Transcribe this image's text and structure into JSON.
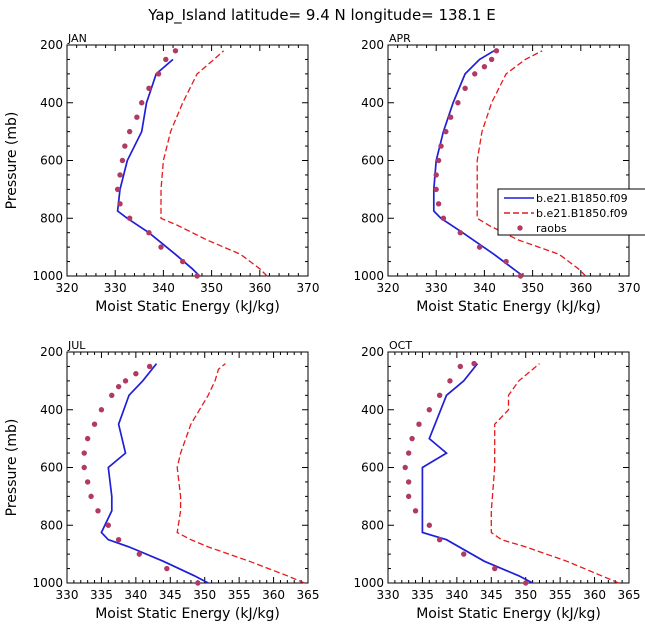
{
  "figure": {
    "title": "Yap_Island  latitude= 9.4 N longitude= 138.1 E",
    "colors": {
      "model_solid": "#1f1fd6",
      "model_dash": "#e41a1c",
      "raobs": "#b03a63",
      "axis": "#000000"
    }
  },
  "legend": {
    "entries": [
      {
        "label": "b.e21.B1850.f09",
        "style": "solid"
      },
      {
        "label": "b.e21.B1850.f09",
        "style": "dash"
      },
      {
        "label": "raobs",
        "style": "marker"
      }
    ]
  },
  "chart_data": [
    {
      "type": "line",
      "panel_label": "JAN",
      "xlabel": "Moist Static Energy (kJ/kg)",
      "ylabel": "Pressure (mb)",
      "xlim": [
        320,
        370
      ],
      "ylim": [
        1000,
        200
      ],
      "xticks": [
        320,
        330,
        340,
        350,
        360,
        370
      ],
      "yticks": [
        200,
        400,
        600,
        800,
        1000
      ],
      "series": [
        {
          "name": "b.e21.B1850.f09",
          "style": "solid",
          "x": [
            347.5,
            346.0,
            342.5,
            337.0,
            332.5,
            330.5,
            331.0,
            332.5,
            335.5,
            336.5,
            338.5,
            342.0
          ],
          "y": [
            1000,
            975,
            925,
            850,
            800,
            775,
            700,
            600,
            500,
            400,
            300,
            250
          ]
        },
        {
          "name": "b.e21.B1850.f09",
          "style": "dash",
          "x": [
            361.5,
            360.0,
            356.0,
            349.0,
            343.0,
            339.5,
            339.5,
            340.0,
            341.5,
            344.0,
            347.0,
            350.5,
            352.5
          ],
          "y": [
            1000,
            975,
            925,
            875,
            825,
            800,
            700,
            600,
            500,
            400,
            300,
            250,
            220
          ]
        },
        {
          "name": "raobs",
          "style": "marker",
          "x": [
            347.0,
            344.0,
            339.5,
            337.0,
            333.0,
            331.0,
            330.5,
            331.0,
            331.5,
            332.0,
            333.0,
            334.5,
            335.5,
            337.0,
            339.0,
            340.5,
            342.5
          ],
          "y": [
            1000,
            950,
            900,
            850,
            800,
            750,
            700,
            650,
            600,
            550,
            500,
            450,
            400,
            350,
            300,
            250,
            220
          ]
        }
      ]
    },
    {
      "type": "line",
      "panel_label": "APR",
      "xlabel": "Moist Static Energy (kJ/kg)",
      "ylabel": "",
      "xlim": [
        320,
        370
      ],
      "ylim": [
        1000,
        200
      ],
      "xticks": [
        320,
        330,
        340,
        350,
        360,
        370
      ],
      "yticks": [
        200,
        400,
        600,
        800,
        1000
      ],
      "series": [
        {
          "name": "b.e21.B1850.f09",
          "style": "solid",
          "x": [
            348.0,
            346.0,
            342.0,
            335.5,
            331.0,
            329.5,
            329.5,
            330.0,
            331.5,
            333.5,
            336.0,
            339.0,
            341.0,
            342.0
          ],
          "y": [
            1000,
            975,
            925,
            850,
            800,
            775,
            700,
            600,
            500,
            400,
            300,
            250,
            230,
            220
          ]
        },
        {
          "name": "b.e21.B1850.f09",
          "style": "dash",
          "x": [
            361.0,
            359.5,
            355.5,
            347.0,
            341.0,
            338.5,
            338.5,
            338.5,
            339.5,
            341.5,
            344.5,
            348.5,
            352.0
          ],
          "y": [
            1000,
            975,
            925,
            875,
            825,
            800,
            700,
            600,
            500,
            400,
            300,
            250,
            220
          ]
        },
        {
          "name": "raobs",
          "style": "marker",
          "x": [
            347.5,
            344.5,
            339.0,
            335.0,
            331.5,
            330.5,
            330.0,
            330.0,
            330.5,
            331.0,
            332.0,
            333.0,
            334.5,
            336.0,
            338.0,
            340.0,
            341.5,
            342.5
          ],
          "y": [
            1000,
            950,
            900,
            850,
            800,
            750,
            700,
            650,
            600,
            550,
            500,
            450,
            400,
            350,
            300,
            275,
            250,
            220
          ]
        }
      ]
    },
    {
      "type": "line",
      "panel_label": "JUL",
      "xlabel": "Moist Static Energy (kJ/kg)",
      "ylabel": "Pressure (mb)",
      "xlim": [
        330,
        365
      ],
      "ylim": [
        1000,
        200
      ],
      "xticks": [
        330,
        335,
        340,
        345,
        350,
        355,
        360,
        365
      ],
      "yticks": [
        200,
        400,
        600,
        800,
        1000
      ],
      "series": [
        {
          "name": "b.e21.B1850.f09",
          "style": "solid",
          "x": [
            350.5,
            348.5,
            344.0,
            339.0,
            336.0,
            335.0,
            336.5,
            336.5,
            336.0,
            338.5,
            337.5,
            339.0,
            341.0,
            343.0
          ],
          "y": [
            1000,
            975,
            925,
            875,
            850,
            825,
            750,
            700,
            600,
            550,
            450,
            350,
            300,
            240
          ]
        },
        {
          "name": "b.e21.B1850.f09",
          "style": "dash",
          "x": [
            364.5,
            362.0,
            356.5,
            350.5,
            348.0,
            346.0,
            346.5,
            346.5,
            346.0,
            346.5,
            348.0,
            350.5,
            351.5,
            352.0,
            353.0
          ],
          "y": [
            1000,
            975,
            925,
            875,
            850,
            825,
            750,
            700,
            600,
            550,
            450,
            350,
            300,
            260,
            240
          ]
        },
        {
          "name": "raobs",
          "style": "marker",
          "x": [
            349.0,
            344.5,
            340.5,
            337.5,
            336.0,
            334.5,
            333.5,
            333.0,
            332.5,
            332.5,
            333.0,
            334.0,
            335.0,
            336.5,
            337.5,
            338.5,
            340.0,
            342.0
          ],
          "y": [
            1000,
            950,
            900,
            850,
            800,
            750,
            700,
            650,
            600,
            550,
            500,
            450,
            400,
            350,
            320,
            300,
            275,
            250
          ]
        }
      ]
    },
    {
      "type": "line",
      "panel_label": "OCT",
      "xlabel": "Moist Static Energy (kJ/kg)",
      "ylabel": "",
      "xlim": [
        330,
        365
      ],
      "ylim": [
        1000,
        200
      ],
      "xticks": [
        330,
        335,
        340,
        345,
        350,
        355,
        360,
        365
      ],
      "yticks": [
        200,
        400,
        600,
        800,
        1000
      ],
      "series": [
        {
          "name": "b.e21.B1850.f09",
          "style": "solid",
          "x": [
            351.0,
            349.0,
            344.0,
            338.5,
            335.0,
            335.0,
            335.0,
            335.0,
            338.5,
            336.0,
            338.5,
            341.0,
            343.0
          ],
          "y": [
            1000,
            975,
            925,
            850,
            825,
            800,
            750,
            600,
            550,
            500,
            350,
            300,
            240
          ]
        },
        {
          "name": "b.e21.B1850.f09",
          "style": "dash",
          "x": [
            363.5,
            361.0,
            356.0,
            350.0,
            346.5,
            345.0,
            345.0,
            345.5,
            345.5,
            347.5,
            347.5,
            349.0,
            352.0
          ],
          "y": [
            1000,
            975,
            925,
            875,
            850,
            825,
            750,
            600,
            450,
            400,
            350,
            300,
            240
          ]
        },
        {
          "name": "raobs",
          "style": "marker",
          "x": [
            350.0,
            345.5,
            341.0,
            337.5,
            336.0,
            334.0,
            333.0,
            333.0,
            332.5,
            333.0,
            333.5,
            334.5,
            336.0,
            337.5,
            339.0,
            340.5,
            342.5
          ],
          "y": [
            1000,
            950,
            900,
            850,
            800,
            750,
            700,
            650,
            600,
            550,
            500,
            450,
            400,
            350,
            300,
            250,
            240
          ]
        }
      ]
    }
  ]
}
